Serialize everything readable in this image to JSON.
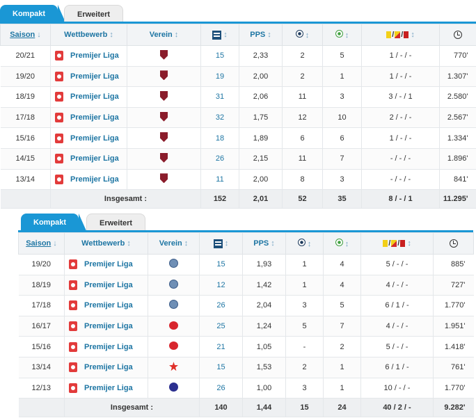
{
  "panels": [
    {
      "tabs": {
        "active": "Kompakt",
        "inactive": "Erweitert"
      },
      "headers": {
        "saison": "Saison",
        "wettbewerb": "Wettbewerb",
        "verein": "Verein",
        "pps": "PPS",
        "sort_down": "↓",
        "sort": "↕",
        "sep": "/"
      },
      "rows": [
        {
          "saison": "20/21",
          "comp": "Premijer Liga",
          "apps": "15",
          "pps": "2,33",
          "goals": "2",
          "assists": "5",
          "cards": "1 / - / -",
          "minutes": "770'"
        },
        {
          "saison": "19/20",
          "comp": "Premijer Liga",
          "apps": "19",
          "pps": "2,00",
          "goals": "2",
          "assists": "1",
          "cards": "1 / - / -",
          "minutes": "1.307'"
        },
        {
          "saison": "18/19",
          "comp": "Premijer Liga",
          "apps": "31",
          "pps": "2,06",
          "goals": "11",
          "assists": "3",
          "cards": "3 / - / 1",
          "minutes": "2.580'"
        },
        {
          "saison": "17/18",
          "comp": "Premijer Liga",
          "apps": "32",
          "pps": "1,75",
          "goals": "12",
          "assists": "10",
          "cards": "2 / - / -",
          "minutes": "2.567'"
        },
        {
          "saison": "15/16",
          "comp": "Premijer Liga",
          "apps": "18",
          "pps": "1,89",
          "goals": "6",
          "assists": "6",
          "cards": "1 / - / -",
          "minutes": "1.334'"
        },
        {
          "saison": "14/15",
          "comp": "Premijer Liga",
          "apps": "26",
          "pps": "2,15",
          "goals": "11",
          "assists": "7",
          "cards": "- / - / -",
          "minutes": "1.896'"
        },
        {
          "saison": "13/14",
          "comp": "Premijer Liga",
          "apps": "11",
          "pps": "2,00",
          "goals": "8",
          "assists": "3",
          "cards": "- / - / -",
          "minutes": "841'"
        }
      ],
      "totals": {
        "label": "Insgesamt :",
        "apps": "152",
        "pps": "2,01",
        "goals": "52",
        "assists": "35",
        "cards": "8 / - / 1",
        "minutes": "11.295'"
      }
    },
    {
      "tabs": {
        "active": "Kompakt",
        "inactive": "Erweitert"
      },
      "headers": {
        "saison": "Saison",
        "wettbewerb": "Wettbewerb",
        "verein": "Verein",
        "pps": "PPS",
        "sort_down": "↓",
        "sort": "↕",
        "sep": "/"
      },
      "rows": [
        {
          "saison": "19/20",
          "comp": "Premijer Liga",
          "apps": "15",
          "pps": "1,93",
          "goals": "1",
          "assists": "4",
          "cards": "5 / - / -",
          "minutes": "885'"
        },
        {
          "saison": "18/19",
          "comp": "Premijer Liga",
          "apps": "12",
          "pps": "1,42",
          "goals": "1",
          "assists": "4",
          "cards": "4 / - / -",
          "minutes": "727'"
        },
        {
          "saison": "17/18",
          "comp": "Premijer Liga",
          "apps": "26",
          "pps": "2,04",
          "goals": "3",
          "assists": "5",
          "cards": "6 / 1 / -",
          "minutes": "1.770'"
        },
        {
          "saison": "16/17",
          "comp": "Premijer Liga",
          "apps": "25",
          "pps": "1,24",
          "goals": "5",
          "assists": "7",
          "cards": "4 / - / -",
          "minutes": "1.951'"
        },
        {
          "saison": "15/16",
          "comp": "Premijer Liga",
          "apps": "21",
          "pps": "1,05",
          "goals": "-",
          "assists": "2",
          "cards": "5 / - / -",
          "minutes": "1.418'"
        },
        {
          "saison": "13/14",
          "comp": "Premijer Liga",
          "apps": "15",
          "pps": "1,53",
          "goals": "2",
          "assists": "1",
          "cards": "6 / 1 / -",
          "minutes": "761'"
        },
        {
          "saison": "12/13",
          "comp": "Premijer Liga",
          "apps": "26",
          "pps": "1,00",
          "goals": "3",
          "assists": "1",
          "cards": "10 / - / -",
          "minutes": "1.770'"
        }
      ],
      "totals": {
        "label": "Insgesamt :",
        "apps": "140",
        "pps": "1,44",
        "goals": "15",
        "assists": "24",
        "cards": "40 / 2 / -",
        "minutes": "9.282'"
      }
    }
  ]
}
